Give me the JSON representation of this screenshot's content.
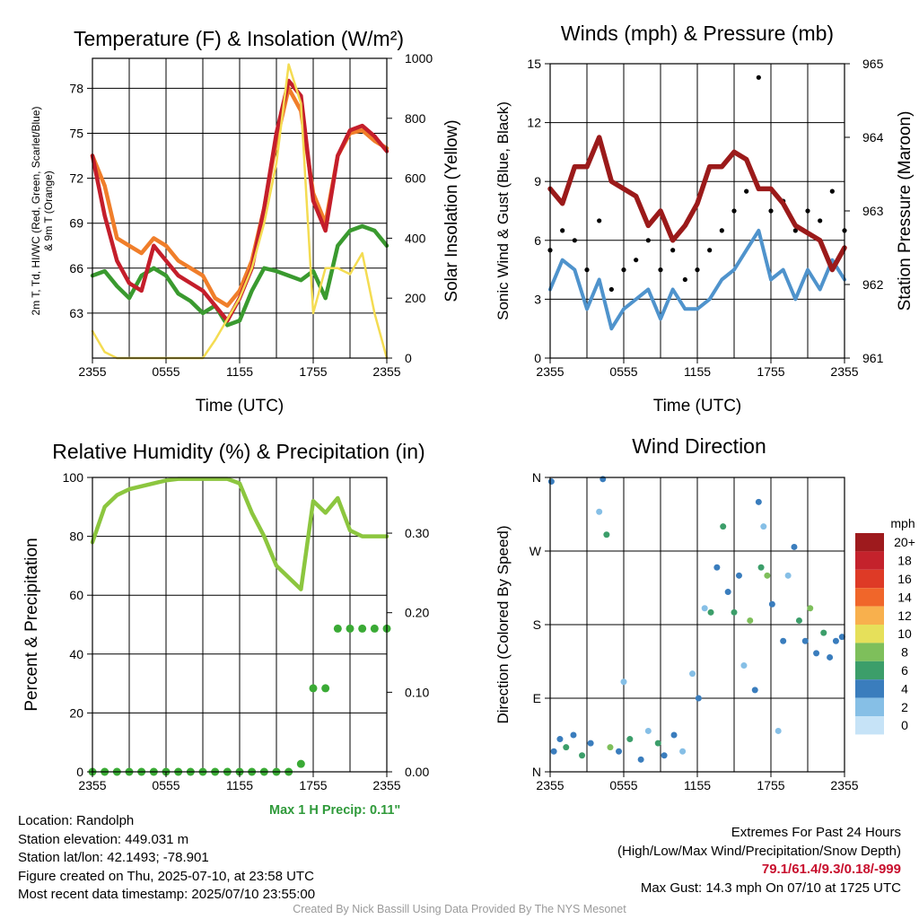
{
  "chart_data": [
    {
      "type": "line",
      "title": "Temperature (F) & Insolation (W/m²)",
      "xlabel": "Time (UTC)",
      "ylabel_lines": [
        "2m T, Td, HI/WC (Red, Green, Scarlet/Blue)",
        "& 9m T (Orange)"
      ],
      "ylabel2": "Solar Insolation (Yellow)",
      "x_ticks": [
        "2355",
        "0555",
        "1155",
        "1755",
        "2355"
      ],
      "y_ticks": [
        63,
        66,
        69,
        72,
        75,
        78
      ],
      "y2_ticks": [
        0,
        200,
        400,
        600,
        800,
        1000
      ],
      "ylim": [
        60,
        80
      ],
      "y2lim": [
        0,
        1000
      ],
      "grid": true,
      "x_hours": [
        0,
        1,
        2,
        3,
        4,
        5,
        6,
        7,
        8,
        9,
        10,
        11,
        12,
        13,
        14,
        15,
        16,
        17,
        18,
        19,
        20,
        21,
        22,
        23,
        24
      ],
      "series": [
        {
          "key": "td",
          "color": "#3a9a2f",
          "axis": "left",
          "values": [
            65.5,
            65.8,
            64.8,
            64.0,
            65.5,
            66.0,
            65.5,
            64.3,
            63.8,
            63.0,
            63.5,
            62.2,
            62.5,
            64.5,
            66.0,
            65.8,
            65.5,
            65.2,
            65.8,
            64.0,
            67.5,
            68.5,
            68.8,
            68.5,
            67.5
          ]
        },
        {
          "key": "t9",
          "color": "#f07e2a",
          "axis": "left",
          "values": [
            73.5,
            71.5,
            68.0,
            67.5,
            67.0,
            68.0,
            67.5,
            66.5,
            66.0,
            65.5,
            64.0,
            63.5,
            64.5,
            66.5,
            70.0,
            74.5,
            78.0,
            76.5,
            71.0,
            69.0,
            73.5,
            75.0,
            75.2,
            74.5,
            74.0
          ]
        },
        {
          "key": "t2",
          "color": "#c41e2b",
          "axis": "left",
          "values": [
            73.5,
            69.5,
            66.5,
            65.0,
            64.5,
            67.5,
            66.5,
            65.5,
            65.0,
            64.5,
            63.5,
            62.5,
            64.0,
            66.0,
            70.0,
            75.0,
            78.5,
            77.5,
            70.5,
            68.5,
            73.5,
            75.2,
            75.5,
            74.8,
            73.8
          ]
        },
        {
          "key": "solar",
          "color": "#f4dc52",
          "axis": "right",
          "values": [
            90,
            20,
            0,
            0,
            0,
            0,
            0,
            0,
            0,
            0,
            60,
            130,
            200,
            300,
            450,
            650,
            980,
            850,
            150,
            300,
            300,
            280,
            350,
            150,
            0
          ]
        }
      ]
    },
    {
      "type": "line",
      "title": "Winds (mph) & Pressure (mb)",
      "xlabel": "Time (UTC)",
      "ylabel": "Sonic Wind & Gust (Blue, Black)",
      "ylabel2": "Station Pressure (Maroon)",
      "x_ticks": [
        "2355",
        "0555",
        "1155",
        "1755",
        "2355"
      ],
      "y_ticks": [
        0,
        3,
        6,
        9,
        12,
        15
      ],
      "y2_ticks": [
        961,
        962,
        963,
        964,
        965
      ],
      "ylim": [
        0,
        15
      ],
      "y2lim": [
        961,
        965
      ],
      "grid": true,
      "x_hours": [
        0,
        1,
        2,
        3,
        4,
        5,
        6,
        7,
        8,
        9,
        10,
        11,
        12,
        13,
        14,
        15,
        16,
        17,
        18,
        19,
        20,
        21,
        22,
        23,
        24
      ],
      "series": [
        {
          "key": "wind",
          "color": "#4f93cc",
          "axis": "left",
          "values": [
            3.5,
            5.0,
            4.5,
            2.5,
            4.0,
            1.5,
            2.5,
            3.0,
            3.5,
            2.0,
            3.5,
            2.5,
            2.5,
            3.0,
            4.0,
            4.5,
            5.5,
            6.5,
            4.0,
            4.5,
            3.0,
            4.5,
            3.5,
            5.0,
            4.0
          ]
        },
        {
          "key": "gust",
          "color": "#000000",
          "axis": "left",
          "values": [
            5.5,
            6.5,
            6.0,
            4.5,
            7.0,
            3.5,
            4.5,
            5.0,
            6.0,
            4.5,
            5.5,
            4.0,
            4.5,
            5.5,
            6.5,
            7.5,
            8.5,
            14.3,
            7.5,
            8.0,
            6.5,
            7.5,
            7.0,
            8.5,
            6.5
          ]
        },
        {
          "key": "pressure",
          "color": "#9b1a1a",
          "axis": "right",
          "values": [
            963.3,
            963.1,
            963.6,
            963.6,
            964.0,
            963.4,
            963.3,
            963.2,
            962.8,
            963.0,
            962.6,
            962.8,
            963.1,
            963.6,
            963.6,
            963.8,
            963.7,
            963.3,
            963.3,
            963.1,
            962.8,
            962.7,
            962.6,
            962.2,
            962.5
          ]
        }
      ]
    },
    {
      "type": "line",
      "title": "Relative Humidity (%) & Precipitation (in)",
      "ylabel": "Percent & Precipitation",
      "x_ticks": [
        "2355",
        "0555",
        "1155",
        "1755",
        "2355"
      ],
      "y_ticks": [
        0,
        20,
        40,
        60,
        80,
        100
      ],
      "y2_ticks": [
        "0.00",
        "0.10",
        "0.20",
        "0.30"
      ],
      "ylim": [
        0,
        100
      ],
      "y2lim": [
        0,
        0.37
      ],
      "grid": true,
      "annotation": "Max 1 H Precip: 0.11\"",
      "x_hours": [
        0,
        1,
        2,
        3,
        4,
        5,
        6,
        7,
        8,
        9,
        10,
        11,
        12,
        13,
        14,
        15,
        16,
        17,
        18,
        19,
        20,
        21,
        22,
        23,
        24
      ],
      "series": [
        {
          "key": "rh",
          "color": "#8cc63f",
          "axis": "left",
          "values": [
            78,
            90,
            94,
            96,
            97,
            98,
            99,
            99.5,
            99.5,
            99.5,
            99.5,
            99.5,
            98,
            88,
            80,
            70,
            66,
            62,
            92,
            88,
            93,
            82,
            80,
            80,
            80
          ]
        },
        {
          "key": "precip",
          "color": "#3aaa35",
          "axis": "right",
          "values": [
            0,
            0,
            0,
            0,
            0,
            0,
            0,
            0,
            0,
            0,
            0,
            0,
            0,
            0,
            0,
            0,
            0,
            0.01,
            0.105,
            0.105,
            0.18,
            0.18,
            0.18,
            0.18,
            0.18
          ]
        }
      ]
    },
    {
      "type": "scatter",
      "title": "Wind Direction",
      "ylabel": "Direction (Colored By Speed)",
      "x_ticks": [
        "2355",
        "0555",
        "1155",
        "1755",
        "2355"
      ],
      "y_ticks": [
        "N",
        "E",
        "S",
        "W",
        "N"
      ],
      "ylim": [
        0,
        360
      ],
      "legend_title": "mph",
      "colorbar": [
        {
          "label": "0",
          "color": "#c6e3f7"
        },
        {
          "label": "2",
          "color": "#86bfe6"
        },
        {
          "label": "4",
          "color": "#3a7dbd"
        },
        {
          "label": "6",
          "color": "#3c9e6a"
        },
        {
          "label": "8",
          "color": "#7ebf5b"
        },
        {
          "label": "10",
          "color": "#e6e05a"
        },
        {
          "label": "12",
          "color": "#f8b04d"
        },
        {
          "label": "14",
          "color": "#f0662a"
        },
        {
          "label": "16",
          "color": "#de3a26"
        },
        {
          "label": "18",
          "color": "#c4222c"
        },
        {
          "label": "20+",
          "color": "#9e1a1d"
        }
      ],
      "points": [
        {
          "h": 0.1,
          "d": 355,
          "s": 3
        },
        {
          "h": 0.3,
          "d": 25,
          "s": 3
        },
        {
          "h": 0.8,
          "d": 40,
          "s": 3
        },
        {
          "h": 1.3,
          "d": 30,
          "s": 6
        },
        {
          "h": 1.9,
          "d": 45,
          "s": 4
        },
        {
          "h": 2.6,
          "d": 20,
          "s": 5
        },
        {
          "h": 3.3,
          "d": 35,
          "s": 3
        },
        {
          "h": 4.0,
          "d": 318,
          "s": 1
        },
        {
          "h": 4.3,
          "d": 358,
          "s": 3
        },
        {
          "h": 4.6,
          "d": 290,
          "s": 6
        },
        {
          "h": 4.9,
          "d": 30,
          "s": 7
        },
        {
          "h": 5.6,
          "d": 25,
          "s": 3
        },
        {
          "h": 6.0,
          "d": 110,
          "s": 1
        },
        {
          "h": 6.5,
          "d": 40,
          "s": 6
        },
        {
          "h": 7.4,
          "d": 15,
          "s": 3
        },
        {
          "h": 8.0,
          "d": 50,
          "s": 2
        },
        {
          "h": 8.8,
          "d": 35,
          "s": 6
        },
        {
          "h": 9.3,
          "d": 20,
          "s": 4
        },
        {
          "h": 10.1,
          "d": 45,
          "s": 3
        },
        {
          "h": 10.8,
          "d": 25,
          "s": 1
        },
        {
          "h": 11.6,
          "d": 120,
          "s": 2
        },
        {
          "h": 12.1,
          "d": 90,
          "s": 3
        },
        {
          "h": 12.6,
          "d": 200,
          "s": 2
        },
        {
          "h": 13.1,
          "d": 195,
          "s": 5
        },
        {
          "h": 13.6,
          "d": 250,
          "s": 3
        },
        {
          "h": 14.1,
          "d": 300,
          "s": 5
        },
        {
          "h": 14.5,
          "d": 220,
          "s": 4
        },
        {
          "h": 15.0,
          "d": 195,
          "s": 6
        },
        {
          "h": 15.4,
          "d": 240,
          "s": 3
        },
        {
          "h": 15.8,
          "d": 130,
          "s": 2
        },
        {
          "h": 16.3,
          "d": 185,
          "s": 7
        },
        {
          "h": 16.7,
          "d": 100,
          "s": 3
        },
        {
          "h": 17.0,
          "d": 330,
          "s": 4
        },
        {
          "h": 17.2,
          "d": 250,
          "s": 6
        },
        {
          "h": 17.4,
          "d": 300,
          "s": 2
        },
        {
          "h": 17.7,
          "d": 240,
          "s": 7
        },
        {
          "h": 18.1,
          "d": 205,
          "s": 3
        },
        {
          "h": 18.6,
          "d": 50,
          "s": 2
        },
        {
          "h": 19.0,
          "d": 160,
          "s": 3
        },
        {
          "h": 19.4,
          "d": 240,
          "s": 2
        },
        {
          "h": 19.9,
          "d": 275,
          "s": 4
        },
        {
          "h": 20.3,
          "d": 185,
          "s": 6
        },
        {
          "h": 20.8,
          "d": 160,
          "s": 4
        },
        {
          "h": 21.2,
          "d": 200,
          "s": 7
        },
        {
          "h": 21.7,
          "d": 145,
          "s": 4
        },
        {
          "h": 22.3,
          "d": 170,
          "s": 6
        },
        {
          "h": 22.8,
          "d": 140,
          "s": 3
        },
        {
          "h": 23.3,
          "d": 160,
          "s": 4
        },
        {
          "h": 23.8,
          "d": 165,
          "s": 3
        }
      ]
    }
  ],
  "info": {
    "location": "Location: Randolph",
    "elevation": "Station elevation: 449.031 m",
    "latlon": "Station lat/lon: 42.1493; -78.901",
    "created": "Figure created on Thu, 2025-07-10, at 23:58 UTC",
    "recent": "Most recent data timestamp: 2025/07/10 23:55:00"
  },
  "extremes": {
    "title": "Extremes For Past 24 Hours",
    "subtitle": "(High/Low/Max Wind/Precipitation/Snow Depth)",
    "values": "79.1/61.4/9.3/0.18/-999",
    "gust": "Max Gust: 14.3 mph On 07/10 at 1725 UTC"
  },
  "credit": "Created By Nick Bassill Using Data Provided By The NYS Mesonet"
}
